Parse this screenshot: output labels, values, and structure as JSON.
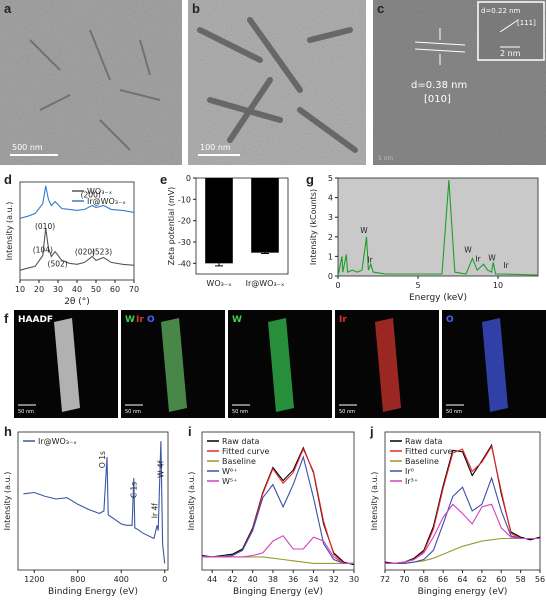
{
  "figure": {
    "a": {
      "label": "a",
      "scale": "500 nm"
    },
    "b": {
      "label": "b",
      "scale": "100 nm"
    },
    "c": {
      "label": "c",
      "scale": "5 nm",
      "spacing": "d=0.38 nm",
      "direction": "[010]",
      "inset_spacing": "d=0.22 nm",
      "inset_direction": "[111]",
      "inset_scale": "2 nm"
    },
    "f": {
      "label": "f",
      "tiles": [
        {
          "title": "HAADF",
          "scale": "50 nm"
        },
        {
          "title_parts": [
            "W",
            "Ir",
            "O"
          ],
          "scale": "50 nm"
        },
        {
          "title": "W",
          "scale": "50 nm"
        },
        {
          "title": "Ir",
          "scale": "50 nm"
        },
        {
          "title": "O",
          "scale": "50 nm"
        }
      ]
    }
  },
  "chart_data": [
    {
      "panel": "d",
      "type": "line",
      "xlabel": "2θ (°)",
      "ylabel": "Intensity (a.u.)",
      "x": [
        10,
        14,
        18,
        22,
        23.5,
        25,
        26.5,
        28.5,
        32,
        36,
        40,
        44,
        48,
        50,
        54,
        58,
        64,
        70
      ],
      "xlim": [
        10,
        70
      ],
      "xticks": [
        10,
        20,
        30,
        40,
        50,
        60,
        70
      ],
      "ylim": [
        0,
        10
      ],
      "legend": "upper right",
      "series": [
        {
          "name": "WO₃₋ₓ",
          "color": "#555555",
          "values": [
            1.0,
            1.2,
            1.4,
            2.5,
            5.3,
            3.2,
            2.4,
            2.9,
            2.0,
            1.7,
            1.6,
            1.8,
            2.4,
            2.0,
            2.3,
            1.8,
            1.6,
            1.5
          ]
        },
        {
          "name": "Ir@WO₃₋ₓ",
          "color": "#2f7fd0",
          "values": [
            6.3,
            6.5,
            6.8,
            7.8,
            9.6,
            8.2,
            7.6,
            8.0,
            7.3,
            7.2,
            7.1,
            7.2,
            7.6,
            7.4,
            7.6,
            7.2,
            7.1,
            6.9
          ]
        }
      ],
      "annotations": [
        "(010)",
        "(200)",
        "(104)",
        "(502)",
        "(020)",
        "(523)"
      ]
    },
    {
      "panel": "e",
      "type": "bar",
      "ylabel": "Zeta potential (mV)",
      "categories": [
        "WO₃₋ₓ",
        "Ir@WO₃₋ₓ"
      ],
      "values": [
        -40,
        -35
      ],
      "errors": [
        1.2,
        0.4
      ],
      "color": "#000000",
      "ylim": [
        -45,
        0
      ],
      "yticks": [
        0,
        -10,
        -20,
        -30,
        -40
      ]
    },
    {
      "panel": "g",
      "type": "line",
      "xlabel": "Energy (keV)",
      "ylabel": "Intensity (kCounts)",
      "x": [
        0,
        0.25,
        0.3,
        0.4,
        0.52,
        0.6,
        0.9,
        1.2,
        1.5,
        1.78,
        1.9,
        2.05,
        2.2,
        3,
        5,
        6.5,
        6.93,
        7.3,
        8,
        8.4,
        8.7,
        9.1,
        9.35,
        9.6,
        9.7,
        9.85,
        10.2,
        12.5
      ],
      "xlim": [
        0,
        12.5
      ],
      "xticks": [
        0,
        5,
        10
      ],
      "ylim": [
        0,
        5
      ],
      "yticks": [
        0,
        1,
        2,
        3,
        4,
        5
      ],
      "background": "#c9c9c9",
      "series": [
        {
          "color": "#1f9e2c",
          "values": [
            0,
            1.0,
            0.2,
            0.6,
            1.1,
            0.2,
            0.3,
            0.2,
            0.3,
            2.0,
            0.3,
            0.6,
            0.2,
            0.1,
            0.1,
            0.1,
            4.9,
            0.2,
            0.1,
            0.9,
            0.3,
            0.6,
            0.3,
            0.2,
            0.7,
            0.1,
            0.1,
            0.05
          ]
        }
      ],
      "annotations": [
        "W",
        "Ir",
        "W",
        "Ir",
        "W",
        "Ir"
      ]
    },
    {
      "panel": "h",
      "type": "line",
      "xlabel": "Binding Energy (eV)",
      "ylabel": "Intensity (a.u.)",
      "x": [
        1300,
        1200,
        1100,
        1000,
        900,
        800,
        700,
        600,
        560,
        531,
        520,
        450,
        400,
        350,
        300,
        285,
        275,
        250,
        200,
        100,
        70,
        60,
        35,
        20,
        0
      ],
      "xlim": [
        1350,
        -30
      ],
      "xticks": [
        1200,
        800,
        400,
        0
      ],
      "ylim": [
        0,
        10.5
      ],
      "legend": "upper left",
      "series": [
        {
          "name": "Ir@WO₃₋ₓ",
          "color": "#3a55a6",
          "values": [
            5.8,
            5.9,
            5.6,
            5.4,
            5.5,
            5.0,
            4.6,
            4.3,
            4.5,
            8.6,
            4.2,
            3.8,
            3.5,
            3.4,
            3.4,
            7.0,
            3.2,
            3.1,
            2.8,
            2.4,
            3.4,
            3.0,
            9.8,
            2.0,
            0.5
          ]
        }
      ],
      "annotations": [
        "O 1s",
        "C 1s",
        "Ir 4f",
        "W 4f"
      ]
    },
    {
      "panel": "i",
      "type": "line",
      "xlabel": "Binging Energy (eV)",
      "ylabel": "Intensity (a.u.)",
      "x": [
        45,
        44,
        43,
        42,
        41,
        40,
        39,
        38,
        37,
        36,
        35,
        34,
        33,
        32,
        31,
        30
      ],
      "xlim": [
        45,
        30
      ],
      "xticks": [
        44,
        42,
        40,
        38,
        36,
        34,
        32,
        30
      ],
      "ylim": [
        0,
        10.5
      ],
      "legend": "upper left",
      "series": [
        {
          "name": "Raw data",
          "color": "#000000",
          "values": [
            1.1,
            1.0,
            1.1,
            1.2,
            1.6,
            3.2,
            5.9,
            7.8,
            6.8,
            7.6,
            9.3,
            7.4,
            3.5,
            1.3,
            0.6,
            0.4
          ]
        },
        {
          "name": "Fitted curve",
          "color": "#e8262c",
          "values": [
            1.0,
            1.0,
            1.0,
            1.1,
            1.5,
            3.1,
            5.8,
            7.7,
            6.6,
            7.4,
            9.2,
            7.5,
            3.7,
            1.2,
            0.5,
            0.5
          ]
        },
        {
          "name": "Baseline",
          "color": "#9a9a2a",
          "values": [
            1.0,
            1.0,
            1.0,
            1.0,
            1.0,
            1.0,
            1.0,
            0.9,
            0.8,
            0.7,
            0.6,
            0.5,
            0.5,
            0.5,
            0.5,
            0.5
          ]
        },
        {
          "name": "W⁶⁺",
          "color": "#3d4fa8",
          "values": [
            1.0,
            1.0,
            1.0,
            1.1,
            1.5,
            3.0,
            5.5,
            6.5,
            4.8,
            6.5,
            8.6,
            5.5,
            2.0,
            0.8,
            0.5,
            0.5
          ]
        },
        {
          "name": "W⁵⁺",
          "color": "#d23fc0",
          "values": [
            1.0,
            1.0,
            1.0,
            1.0,
            1.0,
            1.1,
            1.3,
            2.2,
            2.6,
            1.6,
            1.6,
            2.5,
            2.2,
            1.0,
            0.5,
            0.5
          ]
        }
      ]
    },
    {
      "panel": "j",
      "type": "line",
      "xlabel": "Binging energy (eV)",
      "ylabel": "Intensity (a.u.)",
      "x": [
        72,
        71,
        70,
        69,
        68,
        67,
        66,
        65,
        64,
        63,
        62,
        61,
        60,
        59,
        58,
        57,
        56
      ],
      "xlim": [
        72,
        56
      ],
      "xticks": [
        72,
        70,
        68,
        66,
        64,
        62,
        60,
        58,
        56
      ],
      "ylim": [
        0,
        10.5
      ],
      "legend": "upper left",
      "series": [
        {
          "name": "Raw data",
          "color": "#000000",
          "values": [
            0.6,
            0.5,
            0.6,
            0.9,
            1.5,
            3.3,
            6.4,
            9.1,
            9.0,
            7.2,
            8.3,
            9.5,
            5.8,
            2.9,
            2.5,
            2.3,
            2.5
          ]
        },
        {
          "name": "Fitted curve",
          "color": "#e8262c",
          "values": [
            0.5,
            0.5,
            0.6,
            0.8,
            1.4,
            3.1,
            6.2,
            8.9,
            9.2,
            7.5,
            8.2,
            9.4,
            6.0,
            2.8,
            2.4,
            2.4,
            2.4
          ]
        },
        {
          "name": "Baseline",
          "color": "#9a9a2a",
          "values": [
            0.5,
            0.5,
            0.5,
            0.6,
            0.7,
            0.9,
            1.2,
            1.5,
            1.8,
            2.0,
            2.2,
            2.3,
            2.4,
            2.4,
            2.4,
            2.4,
            2.4
          ]
        },
        {
          "name": "Ir⁰",
          "color": "#3d4fa8",
          "values": [
            0.5,
            0.5,
            0.5,
            0.6,
            0.8,
            1.5,
            3.5,
            5.6,
            6.3,
            4.5,
            5.0,
            7.0,
            4.5,
            2.6,
            2.4,
            2.4,
            2.4
          ]
        },
        {
          "name": "Ir³⁺",
          "color": "#d23fc0",
          "values": [
            0.5,
            0.5,
            0.6,
            0.8,
            1.3,
            2.5,
            4.0,
            5.0,
            4.3,
            3.5,
            4.8,
            5.0,
            3.2,
            2.5,
            2.4,
            2.4,
            2.4
          ]
        }
      ]
    }
  ]
}
